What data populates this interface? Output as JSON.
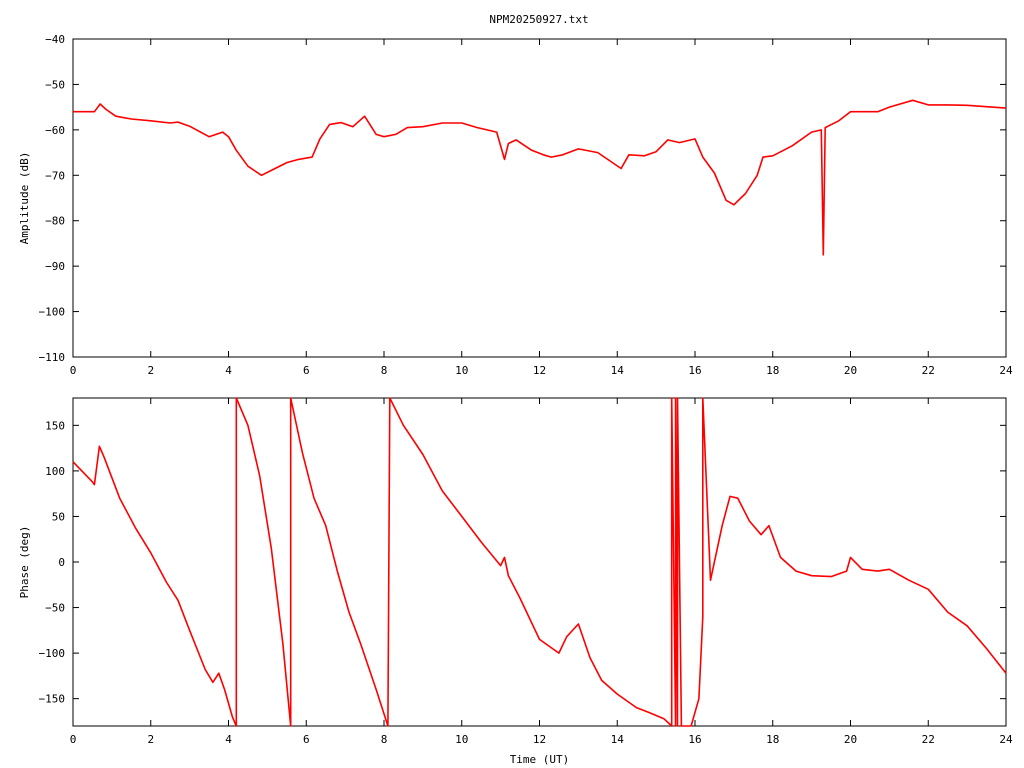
{
  "title": "NPM20250927.txt",
  "colors": {
    "series": "#ff0000",
    "axis": "#000000",
    "background": "#ffffff"
  },
  "chart_data": [
    {
      "type": "line",
      "title": "NPM20250927.txt",
      "xlabel": "",
      "ylabel": "Amplitude (dB)",
      "xlim": [
        0,
        24
      ],
      "ylim": [
        -110,
        -40
      ],
      "xticks": [
        0,
        2,
        4,
        6,
        8,
        10,
        12,
        14,
        16,
        18,
        20,
        22,
        24
      ],
      "yticks": [
        -40,
        -50,
        -60,
        -70,
        -80,
        -90,
        -100,
        -110
      ],
      "grid": false,
      "series": [
        {
          "color": "#ff0000",
          "x": [
            0,
            0.55,
            0.7,
            0.85,
            1.1,
            1.5,
            2.0,
            2.5,
            2.7,
            3.0,
            3.5,
            3.85,
            4.0,
            4.2,
            4.5,
            4.85,
            5.2,
            5.5,
            5.8,
            6.15,
            6.35,
            6.6,
            6.9,
            7.2,
            7.5,
            7.8,
            8.0,
            8.3,
            8.6,
            9.0,
            9.5,
            10.0,
            10.4,
            10.9,
            11.1,
            11.2,
            11.4,
            11.8,
            12.1,
            12.3,
            12.6,
            13.0,
            13.5,
            14.1,
            14.3,
            14.7,
            15.0,
            15.3,
            15.6,
            16.0,
            16.2,
            16.5,
            16.8,
            17.0,
            17.3,
            17.6,
            17.75,
            18.0,
            18.5,
            19.0,
            19.25,
            19.3,
            19.35,
            19.7,
            20.0,
            20.7,
            21.0,
            21.6,
            22.0,
            22.5,
            23.0,
            24.0
          ],
          "values": [
            -56,
            -56,
            -54.3,
            -55.5,
            -57,
            -57.6,
            -58,
            -58.5,
            -58.3,
            -59.2,
            -61.5,
            -60.5,
            -61.5,
            -64.5,
            -68,
            -70,
            -68.5,
            -67.2,
            -66.5,
            -66,
            -62,
            -58.8,
            -58.4,
            -59.3,
            -57,
            -61,
            -61.5,
            -61,
            -59.5,
            -59.3,
            -58.5,
            -58.5,
            -59.5,
            -60.5,
            -66.5,
            -63,
            -62.2,
            -64.5,
            -65.5,
            -66,
            -65.5,
            -64.2,
            -65,
            -68.5,
            -65.5,
            -65.7,
            -64.8,
            -62.2,
            -62.8,
            -62,
            -66,
            -69.5,
            -75.5,
            -76.5,
            -74,
            -70,
            -66,
            -65.7,
            -63.5,
            -60.5,
            -60,
            -87.5,
            -59.5,
            -58,
            -56,
            -56,
            -55,
            -53.5,
            -54.5,
            -54.5,
            -54.6,
            -55.2
          ]
        }
      ]
    },
    {
      "type": "line",
      "title": "",
      "xlabel": "Time (UT)",
      "ylabel": "Phase (deg)",
      "xlim": [
        0,
        24
      ],
      "ylim": [
        -180,
        180
      ],
      "xticks": [
        0,
        2,
        4,
        6,
        8,
        10,
        12,
        14,
        16,
        18,
        20,
        22,
        24
      ],
      "yticks": [
        150,
        100,
        50,
        0,
        -50,
        -100,
        -150
      ],
      "grid": false,
      "series": [
        {
          "color": "#ff0000",
          "x": [
            0,
            0.5,
            0.55,
            0.68,
            0.8,
            1.2,
            1.6,
            2.0,
            2.4,
            2.7,
            3.0,
            3.4,
            3.6,
            3.75,
            3.9,
            4.1,
            4.2,
            4.2,
            4.5,
            4.8,
            5.1,
            5.4,
            5.6,
            5.6,
            5.9,
            6.2,
            6.5,
            6.8,
            7.1,
            7.4,
            7.8,
            8.1,
            8.15,
            8.15,
            8.5,
            9.0,
            9.5,
            10.0,
            10.5,
            11.0,
            11.1,
            11.2,
            11.5,
            12.0,
            12.5,
            12.7,
            13.0,
            13.3,
            13.6,
            14.0,
            14.5,
            14.8,
            15.2,
            15.4,
            15.4,
            15.5,
            15.5,
            15.55,
            15.55,
            15.65,
            15.9,
            16.1,
            16.2,
            16.2,
            16.4,
            16.7,
            16.9,
            17.1,
            17.4,
            17.7,
            17.9,
            18.2,
            18.6,
            19.0,
            19.5,
            19.9,
            20.0,
            20.3,
            20.7,
            21.0,
            21.5,
            22.0,
            22.5,
            23.0,
            23.5,
            24.0
          ],
          "values": [
            110,
            88,
            85,
            127,
            115,
            70,
            38,
            10,
            -22,
            -42,
            -75,
            -118,
            -132,
            -122,
            -140,
            -170,
            -180,
            180,
            150,
            95,
            15,
            -90,
            -180,
            180,
            120,
            70,
            40,
            -10,
            -55,
            -90,
            -140,
            -180,
            180,
            180,
            150,
            118,
            78,
            50,
            22,
            -4,
            5,
            -15,
            -40,
            -85,
            -100,
            -82,
            -68,
            -105,
            -130,
            -145,
            -160,
            -165,
            -172,
            -180,
            180,
            -180,
            180,
            -180,
            180,
            -180,
            -180,
            -150,
            -60,
            180,
            -20,
            40,
            72,
            70,
            45,
            30,
            40,
            5,
            -10,
            -15,
            -16,
            -10,
            5,
            -8,
            -10,
            -8,
            -20,
            -30,
            -55,
            -70,
            -95,
            -122
          ]
        }
      ]
    }
  ]
}
